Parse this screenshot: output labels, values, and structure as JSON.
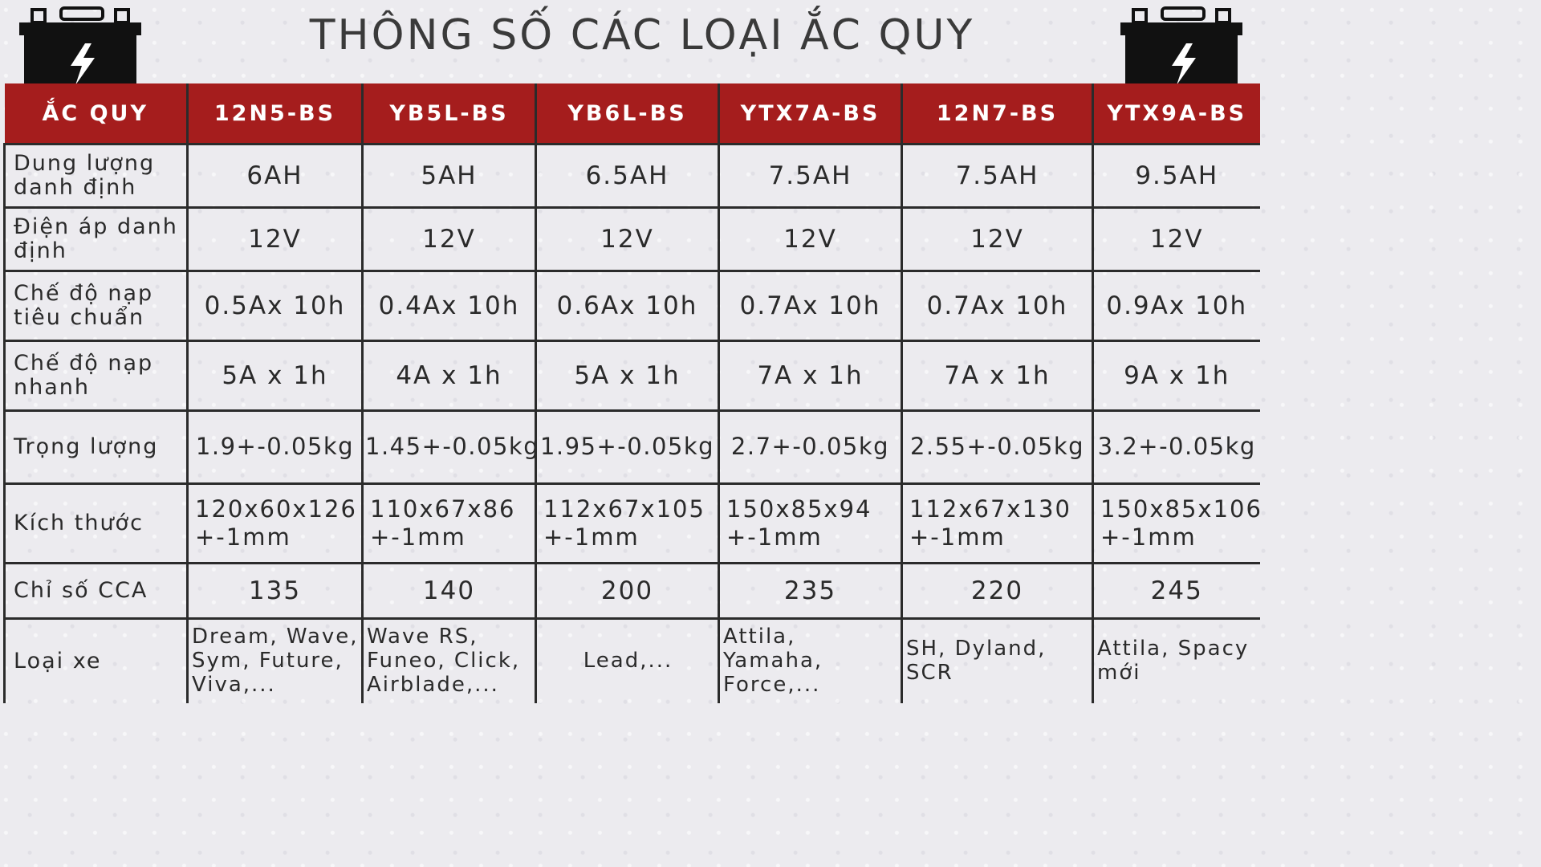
{
  "title": "THÔNG SỐ CÁC LOẠI ẮC  QUY",
  "icons": {
    "left": "car-battery-icon",
    "right": "car-battery-icon"
  },
  "colors": {
    "header_bg": "#a51d1d",
    "header_text": "#ffffff",
    "grid": "#2b2b2b"
  },
  "table": {
    "corner": "ẮC QUY",
    "headers": [
      "12N5-BS",
      "YB5L-BS",
      "YB6L-BS",
      "YTX7A-BS",
      "12N7-BS",
      "YTX9A-BS"
    ],
    "rows": [
      {
        "label": "Dung lượng danh định",
        "values": [
          "6AH",
          "5AH",
          "6.5AH",
          "7.5AH",
          "7.5AH",
          "9.5AH"
        ]
      },
      {
        "label": "Điện áp danh định",
        "values": [
          "12V",
          "12V",
          "12V",
          "12V",
          "12V",
          "12V"
        ]
      },
      {
        "label": "Chế độ nạp tiêu chuẩn",
        "values": [
          "0.5Ax 10h",
          "0.4Ax 10h",
          "0.6Ax 10h",
          "0.7Ax 10h",
          "0.7Ax 10h",
          "0.9Ax 10h"
        ]
      },
      {
        "label": "Chế độ nạp nhanh",
        "values": [
          "5A x 1h",
          "4A x 1h",
          "5A x 1h",
          "7A x 1h",
          "7A x 1h",
          "9A x 1h"
        ]
      },
      {
        "label": "Trọng lượng",
        "values": [
          "1.9+-0.05kg",
          "1.45+-0.05kg",
          "1.95+-0.05kg",
          "2.7+-0.05kg",
          "2.55+-0.05kg",
          "3.2+-0.05kg"
        ]
      },
      {
        "label": "Kích thước",
        "values": [
          "120x60x126 +-1mm",
          "110x67x86 +-1mm",
          "112x67x105 +-1mm",
          "150x85x94 +-1mm",
          "112x67x130 +-1mm",
          "150x85x106 +-1mm"
        ]
      },
      {
        "label": "Chỉ số CCA",
        "values": [
          "135",
          "140",
          "200",
          "235",
          "220",
          "245"
        ]
      },
      {
        "label": "Loại xe",
        "values": [
          "Dream, Wave, Sym, Future, Viva,...",
          "Wave RS, Funeo, Click, Airblade,...",
          "Lead,...",
          "Attila, Yamaha, Force,...",
          "SH, Dyland, SCR",
          "Attila, Spacy mới"
        ]
      }
    ]
  }
}
